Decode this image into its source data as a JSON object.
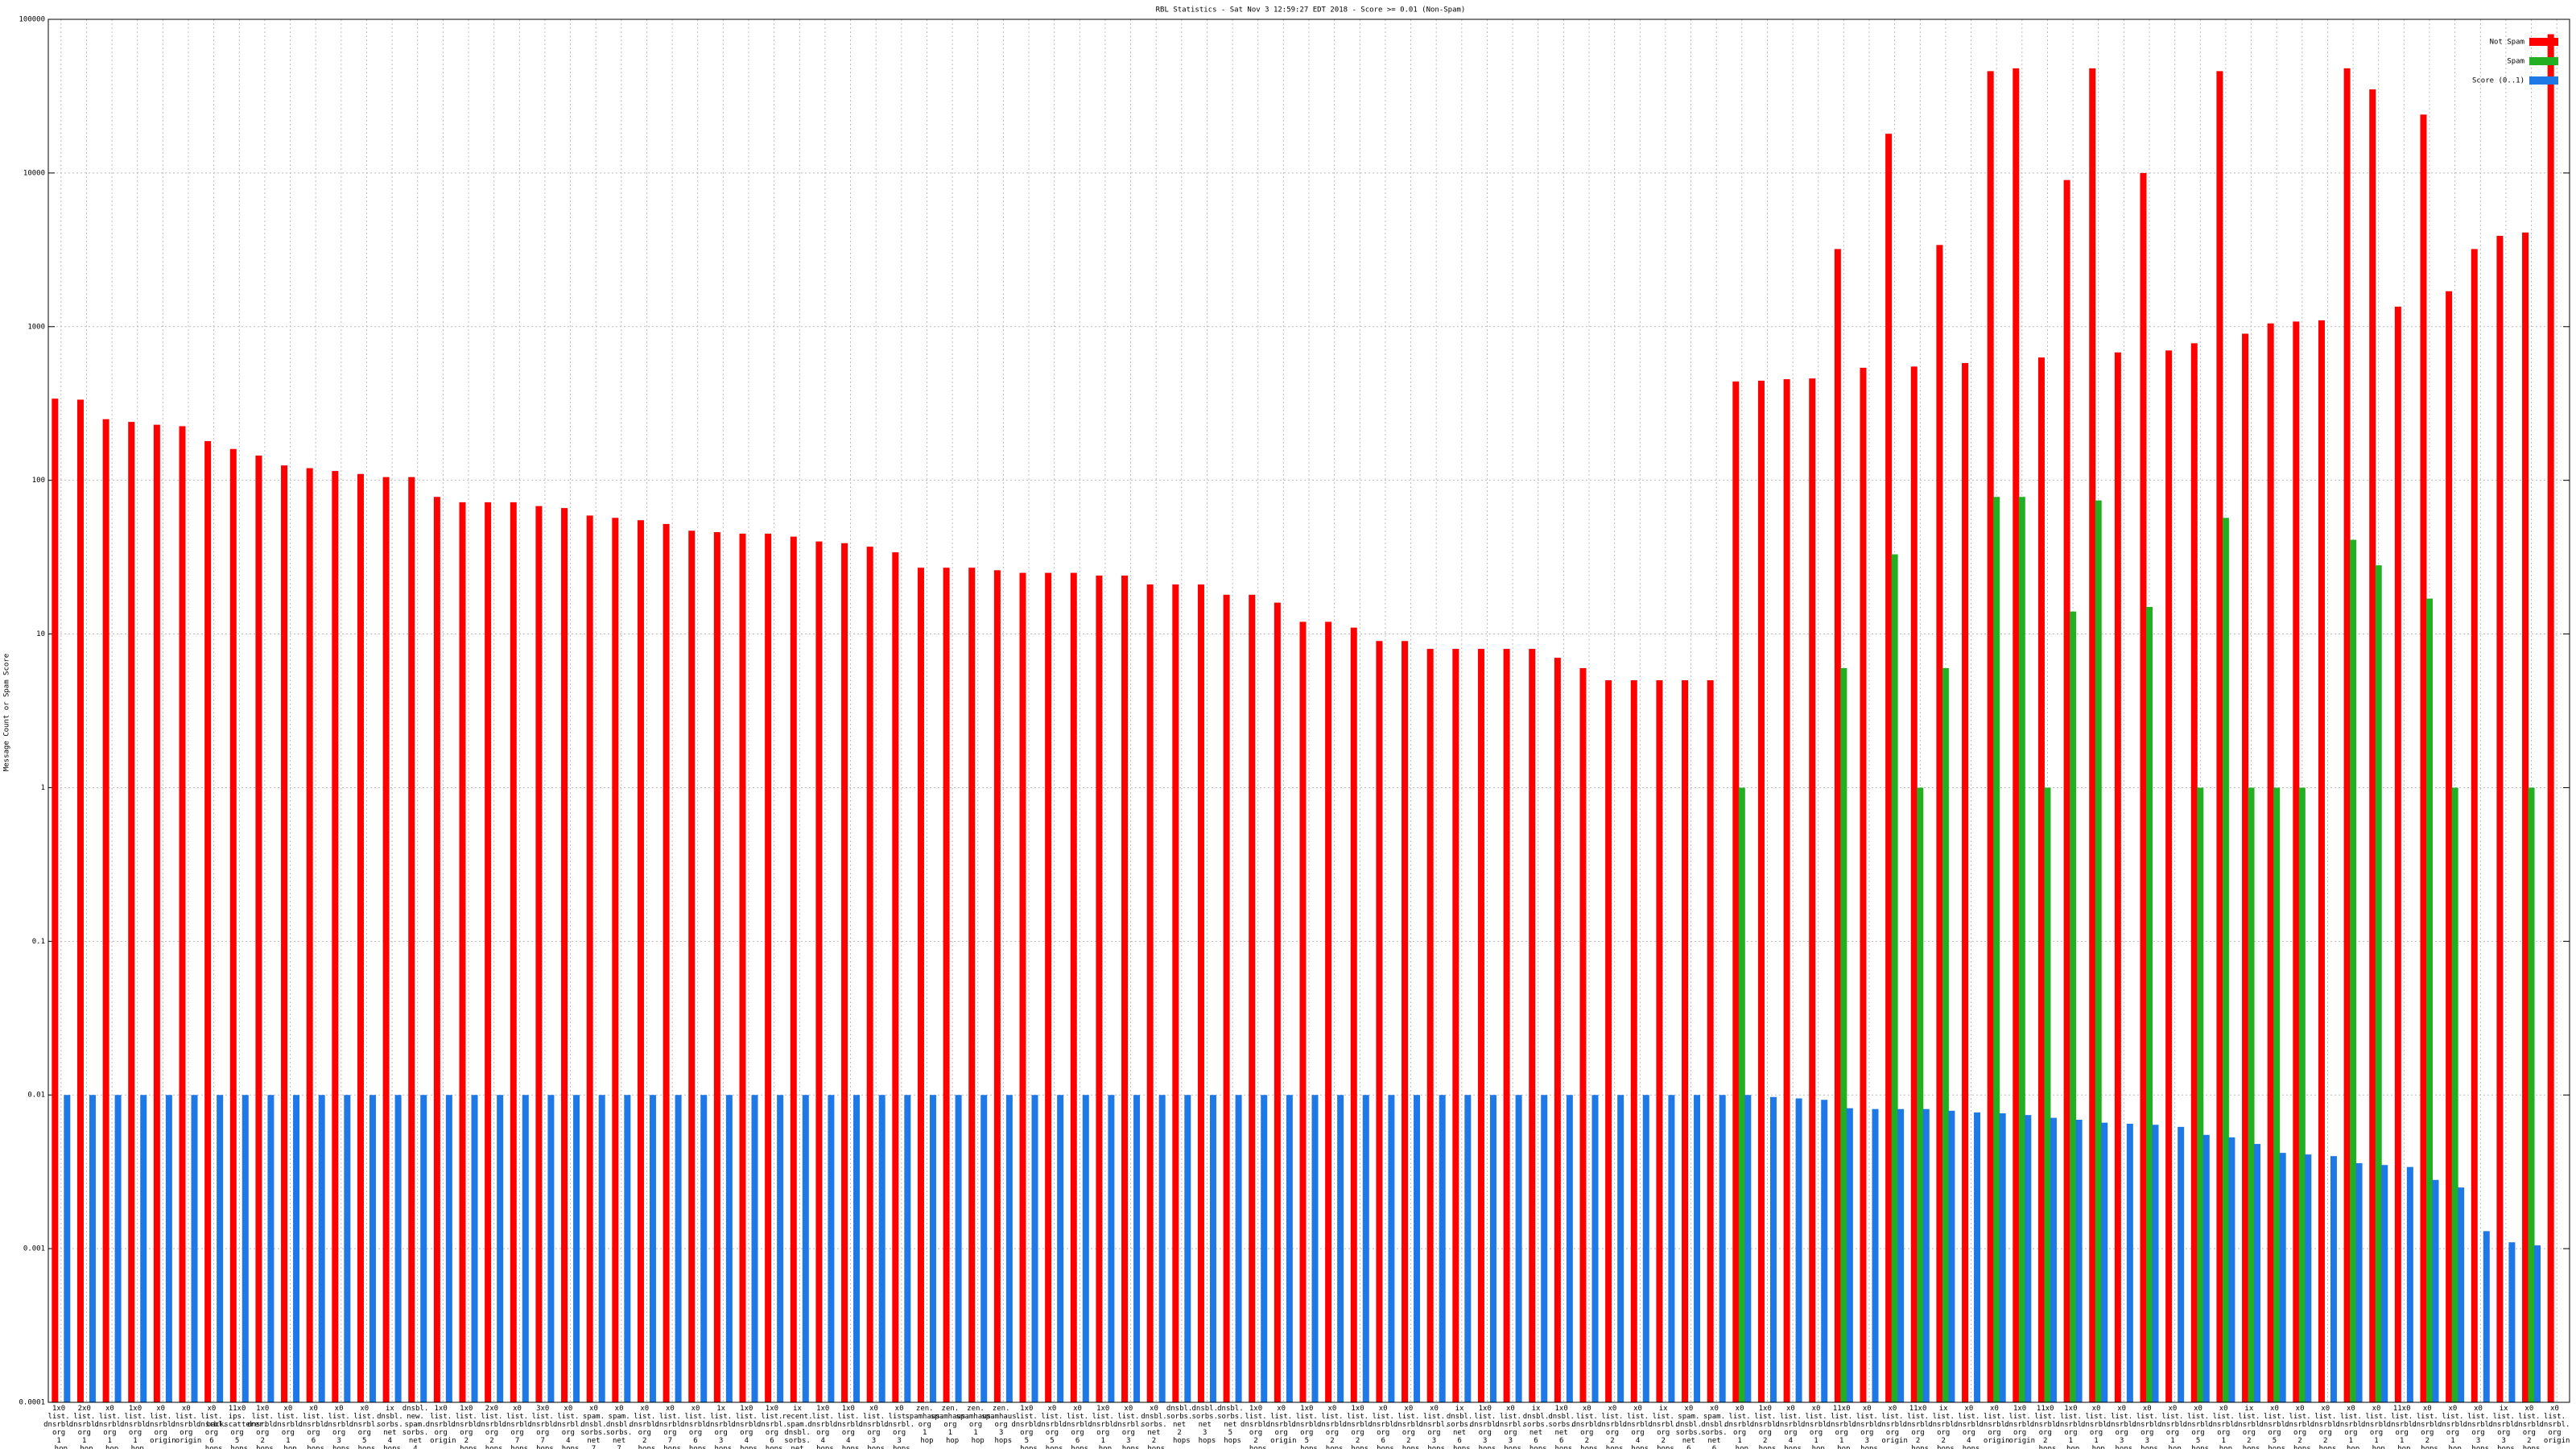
{
  "chart_data": {
    "type": "bar",
    "log_scale": true,
    "grid": true,
    "legend_position": "top-right",
    "title": "RBL Statistics - Sat Nov  3 12:59:27 EDT 2018 - Score >= 0.01 (Non-Spam)",
    "y_label": "Message Count or Spam Score",
    "ylim": [
      0.0001,
      100000
    ],
    "yticks": [
      0.0001,
      0.001,
      0.01,
      0.1,
      1,
      10,
      100,
      1000,
      10000,
      100000
    ],
    "categories": [
      "1x0 list. dnsrbl. org 1 hop",
      "2x0 list. dnsrbl. org 1 hop",
      "x0 list. dnsrbl. org 1 hop",
      "1x0 list. dnsrbl. org 1 hop",
      "x0 list. dnsrbl. org origin",
      "x0 list. dnsrbl. org origin",
      "x0 list. dnsrbl. org 6 hops",
      "11x0 ips. backscatterer. org 5 hops",
      "1x0 list. dnsrbl. org 2 hops",
      "x0 list. dnsrbl. org 1 hop",
      "x0 list. dnsrbl. org 6 hops",
      "x0 list. dnsrbl. org 3 hops",
      "x0 list. dnsrbl. org 5 hops",
      "ix dnsbl. sorbs. net 4 hops",
      "dnsbl. new. spam. sorbs. net 4 hops",
      "1x0 list. dnsrbl. org origin",
      "1x0 list. dnsrbl. org 2 hops",
      "2x0 list. dnsrbl. org 2 hops",
      "x0 list. dnsrbl. org 7 hops",
      "3x0 list. dnsrbl. org 7 hops",
      "x0 list. dnsrbl. org 4 hops",
      "x0 spam. dnsbl. sorbs. net 7 hops",
      "x0 spam. dnsbl. sorbs. net 7 hops",
      "x0 list. dnsrbl. org 2 hops",
      "x0 list. dnsrbl. org 7 hops",
      "x0 list. dnsrbl. org 6 hops",
      "1x list. dnsrbl. org 3 hops",
      "1x0 list. dnsrbl. org 4 hops",
      "1x0 list. dnsrbl. org 6 hops",
      "ix recent. spam. dnsbl. sorbs. net 7 hops",
      "1x0 list. dnsrbl. org 4 hops",
      "1x0 list. dnsrbl. org 4 hops",
      "x0 list. dnsrbl. org 3 hops",
      "x0 list. dnsrbl. org 3 hops",
      "zen. spamhaus. org 1 hop",
      "zen. spamhaus. org 1 hop",
      "zen. spamhaus. org 1 hop",
      "zen. spamhaus. org 3 hops",
      "1x0 list. dnsrbl. org 5 hops",
      "x0 list. dnsrbl. org 5 hops",
      "x0 list. dnsrbl. org 6 hops",
      "1x0 list. dnsrbl. org 1 hop",
      "x0 list. dnsrbl. org 3 hops",
      "x0 dnsbl. sorbs. net 2 hops",
      "dnsbl. sorbs. net 2 hops",
      "dnsbl. sorbs. net 3 hops",
      "dnsbl. sorbs. net 5 hops",
      "1x0 list. dnsrbl. org 2 hops",
      "x0 list. dnsrbl. org origin",
      "1x0 list. dnsrbl. org 5 hops",
      "x0 list. dnsrbl. org 2 hops",
      "1x0 list. dnsrbl. org 2 hops",
      "x0 list. dnsrbl. org 6 hops",
      "x0 list. dnsrbl. org 2 hops",
      "x0 list. dnsrbl. org 3 hops",
      "ix dnsbl. sorbs. net 6 hops",
      "1x0 list. dnsrbl. org 3 hops",
      "x0 list. dnsrbl. org 3 hops",
      "ix dnsbl. sorbs. net 6 hops",
      "1x0 dnsbl. sorbs. net 6 hops",
      "x0 list. dnsrbl. org 2 hops",
      "x0 list. dnsrbl. org 2 hops",
      "x0 list. dnsrbl. org 4 hops",
      "ix list. dnsrbl. org 2 hops",
      "x0 spam. dnsbl. sorbs. net 6 hops",
      "x0 spam. dnsbl. sorbs. net 6 hops",
      "x0 list. dnsrbl. org 1 hop",
      "1x0 list. dnsrbl. org 2 hops",
      "x0 list. dnsrbl. org 4 hops",
      "x0 list. dnsrbl. org 1 hop",
      "11x0 list. dnsrbl. org 1 hop",
      "x0 list. dnsrbl. org 3 hops",
      "x0 list. dnsrbl. org origin",
      "11x0 list. dnsrbl. org 2 hops",
      "ix list. dnsrbl. org 2 hops",
      "x0 list. dnsrbl. org 4 hops",
      "x0 list. dnsrbl. org origin",
      "1x0 list. dnsrbl. org origin",
      "11x0 list. dnsrbl. org 2 hops",
      "1x0 list. dnsrbl. org 1 hop",
      "x0 list. dnsrbl. org 1 hop",
      "x0 list. dnsrbl. org 3 hops",
      "x0 list. dnsrbl. org 3 hops",
      "x0 list. dnsrbl. org 1 hop",
      "x0 list. dnsrbl. org 5 hops",
      "x0 list. dnsrbl. org 1 hop",
      "ix list. dnsrbl. org 2 hops",
      "x0 list. dnsrbl. org 5 hops",
      "x0 list. dnsrbl. org 2 hops",
      "x0 list. dnsrbl. org 2 hops",
      "x0 list. dnsrbl. org 1 hop",
      "x0 list. dnsrbl. org 1 hop",
      "11x0 list. dnsrbl. org 1 hop",
      "x0 list. dnsrbl. org 2 hops",
      "x0 list. dnsrbl. org 1 hop",
      "x0 list. dnsrbl. org 3 hops",
      "ix list. dnsrbl. org 3 hops",
      "x0 list. dnsrbl. org 2 hops",
      "x0 list. dnsrbl. org origin"
    ],
    "series": [
      {
        "name": "Not Spam",
        "color": "#ff0000",
        "values": [
          340,
          335,
          250,
          240,
          230,
          225,
          180,
          160,
          145,
          125,
          120,
          115,
          110,
          105,
          105,
          78,
          72,
          72,
          72,
          68,
          66,
          59,
          57,
          55,
          52,
          47,
          46,
          45,
          45,
          43,
          40,
          39,
          37,
          34,
          27,
          27,
          27,
          26,
          25,
          25,
          25,
          24,
          24,
          21,
          21,
          21,
          18,
          18,
          16,
          12,
          12,
          11,
          9,
          9,
          8,
          8,
          8,
          8,
          8,
          7,
          6,
          5,
          5,
          5,
          5,
          5,
          440,
          445,
          455,
          460,
          3200,
          540,
          18000,
          550,
          3400,
          580,
          46000,
          48000,
          630,
          9000,
          48000,
          680,
          10000,
          700,
          780,
          46000,
          900,
          1050,
          1080,
          1100,
          48000,
          35000,
          1350,
          24000,
          1700,
          3200,
          3900,
          4100,
          80000
        ]
      },
      {
        "name": "Spam",
        "color": "#22b022",
        "values": [
          null,
          null,
          null,
          null,
          null,
          null,
          null,
          null,
          null,
          null,
          null,
          null,
          null,
          null,
          null,
          null,
          null,
          null,
          null,
          null,
          null,
          null,
          null,
          null,
          null,
          null,
          null,
          null,
          null,
          null,
          null,
          null,
          null,
          null,
          null,
          null,
          null,
          null,
          null,
          null,
          null,
          null,
          null,
          null,
          null,
          null,
          null,
          null,
          null,
          null,
          null,
          null,
          null,
          null,
          null,
          null,
          null,
          null,
          null,
          null,
          null,
          null,
          null,
          null,
          null,
          null,
          1,
          null,
          null,
          null,
          6,
          null,
          33,
          1,
          6,
          null,
          78,
          78,
          1,
          14,
          74,
          null,
          15,
          null,
          1,
          57,
          1,
          1,
          1,
          null,
          41,
          28,
          null,
          17,
          1,
          null,
          null,
          1,
          null
        ]
      },
      {
        "name": "Score (0..1)",
        "color": "#1e78e6",
        "values": [
          0.01,
          0.01,
          0.01,
          0.01,
          0.01,
          0.01,
          0.01,
          0.01,
          0.01,
          0.01,
          0.01,
          0.01,
          0.01,
          0.01,
          0.01,
          0.01,
          0.01,
          0.01,
          0.01,
          0.01,
          0.01,
          0.01,
          0.01,
          0.01,
          0.01,
          0.01,
          0.01,
          0.01,
          0.01,
          0.01,
          0.01,
          0.01,
          0.01,
          0.01,
          0.01,
          0.01,
          0.01,
          0.01,
          0.01,
          0.01,
          0.01,
          0.01,
          0.01,
          0.01,
          0.01,
          0.01,
          0.01,
          0.01,
          0.01,
          0.01,
          0.01,
          0.01,
          0.01,
          0.01,
          0.01,
          0.01,
          0.01,
          0.01,
          0.01,
          0.01,
          0.01,
          0.01,
          0.01,
          0.01,
          0.01,
          0.01,
          0.01,
          0.0097,
          0.0095,
          0.0093,
          0.0082,
          0.0081,
          0.0081,
          0.0081,
          0.0079,
          0.0077,
          0.0076,
          0.0074,
          0.0071,
          0.0069,
          0.0066,
          0.0065,
          0.0064,
          0.0062,
          0.0055,
          0.0053,
          0.0048,
          0.0042,
          0.0041,
          0.004,
          0.0036,
          0.0035,
          0.0034,
          0.0028,
          0.0025,
          0.0013,
          0.0011,
          0.00105,
          null
        ]
      }
    ]
  }
}
